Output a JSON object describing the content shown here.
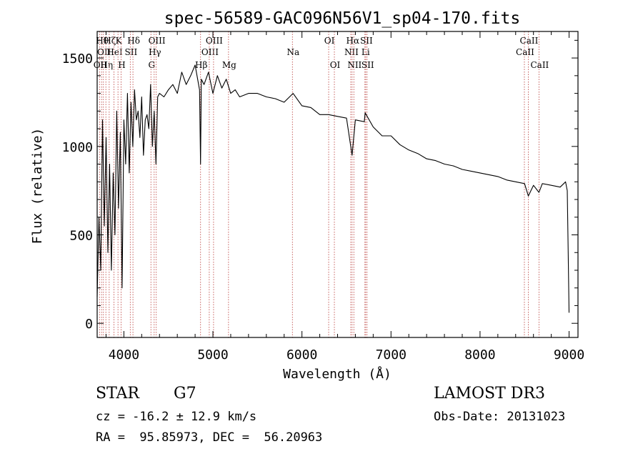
{
  "chart_data": {
    "type": "line",
    "title": "spec-56589-GAC096N56V1_sp04-170.fits",
    "xlabel": "Wavelength (Å)",
    "ylabel": "Flux (relative)",
    "xlim": [
      3700,
      9100
    ],
    "ylim": [
      -80,
      1650
    ],
    "xticks": [
      4000,
      5000,
      6000,
      7000,
      8000,
      9000
    ],
    "xtick_labels": [
      "4000",
      "5000",
      "6000",
      "7000",
      "8000",
      "9000"
    ],
    "yticks": [
      0,
      500,
      1000,
      1500
    ],
    "ytick_labels": [
      "0",
      "500",
      "1000",
      "1500"
    ],
    "grid": false,
    "series": [
      {
        "name": "spectrum",
        "x": [
          3700,
          3720,
          3740,
          3760,
          3780,
          3800,
          3820,
          3840,
          3860,
          3880,
          3900,
          3920,
          3940,
          3960,
          3980,
          4000,
          4020,
          4040,
          4060,
          4080,
          4100,
          4120,
          4140,
          4160,
          4180,
          4200,
          4220,
          4240,
          4260,
          4280,
          4300,
          4320,
          4340,
          4360,
          4380,
          4400,
          4450,
          4500,
          4550,
          4600,
          4650,
          4700,
          4750,
          4800,
          4850,
          4861,
          4870,
          4900,
          4950,
          5000,
          5050,
          5100,
          5150,
          5200,
          5250,
          5300,
          5400,
          5500,
          5600,
          5700,
          5800,
          5900,
          6000,
          6100,
          6200,
          6300,
          6400,
          6500,
          6563,
          6600,
          6700,
          6710,
          6800,
          6900,
          7000,
          7100,
          7200,
          7300,
          7400,
          7500,
          7600,
          7700,
          7800,
          7900,
          8000,
          8100,
          8200,
          8300,
          8400,
          8500,
          8542,
          8600,
          8662,
          8700,
          8800,
          8900,
          8960,
          8980,
          8990,
          9000
        ],
        "values": [
          150,
          600,
          300,
          1150,
          550,
          1050,
          400,
          900,
          300,
          850,
          500,
          1200,
          650,
          1080,
          200,
          1150,
          900,
          1300,
          850,
          1250,
          1000,
          1320,
          1150,
          1200,
          1050,
          1280,
          950,
          1150,
          1180,
          1100,
          1350,
          1000,
          1200,
          900,
          1280,
          1300,
          1280,
          1320,
          1350,
          1300,
          1420,
          1350,
          1400,
          1460,
          1320,
          900,
          1380,
          1350,
          1420,
          1300,
          1400,
          1330,
          1380,
          1300,
          1320,
          1280,
          1300,
          1300,
          1280,
          1270,
          1250,
          1300,
          1230,
          1220,
          1180,
          1180,
          1170,
          1160,
          950,
          1150,
          1140,
          1190,
          1110,
          1060,
          1060,
          1010,
          980,
          960,
          930,
          920,
          900,
          890,
          870,
          860,
          850,
          840,
          830,
          810,
          800,
          790,
          720,
          780,
          740,
          790,
          780,
          770,
          800,
          750,
          400,
          60
        ]
      }
    ],
    "lines": [
      {
        "x": 3727,
        "labels": [
          "OII"
        ],
        "rows": [
          3
        ]
      },
      {
        "x": 3750,
        "labels": [
          "Hθ"
        ],
        "rows": [
          1
        ]
      },
      {
        "x": 3770,
        "labels": [
          "OII"
        ],
        "rows": [
          2
        ]
      },
      {
        "x": 3798,
        "labels": [
          "Hη"
        ],
        "rows": [
          3
        ]
      },
      {
        "x": 3835,
        "labels": [
          "Hζ"
        ],
        "rows": [
          1
        ]
      },
      {
        "x": 3889,
        "labels": [
          "HeI"
        ],
        "rows": [
          2
        ]
      },
      {
        "x": 3934,
        "labels": [
          "K"
        ],
        "rows": [
          1
        ]
      },
      {
        "x": 3969,
        "labels": [
          "H"
        ],
        "rows": [
          3
        ]
      },
      {
        "x": 4072,
        "labels": [
          "SII"
        ],
        "rows": [
          2
        ]
      },
      {
        "x": 4102,
        "labels": [
          "Hδ"
        ],
        "rows": [
          1
        ]
      },
      {
        "x": 4304,
        "labels": [
          "G"
        ],
        "rows": [
          3
        ]
      },
      {
        "x": 4340,
        "labels": [
          "Hγ"
        ],
        "rows": [
          2
        ]
      },
      {
        "x": 4363,
        "labels": [
          "OIII"
        ],
        "rows": [
          1
        ]
      },
      {
        "x": 4861,
        "labels": [
          "Hβ"
        ],
        "rows": [
          3
        ]
      },
      {
        "x": 4959,
        "labels": [
          "OIII"
        ],
        "rows": [
          2
        ]
      },
      {
        "x": 5007,
        "labels": [
          "OIII"
        ],
        "rows": [
          1
        ]
      },
      {
        "x": 5175,
        "labels": [
          "Mg"
        ],
        "rows": [
          3
        ]
      },
      {
        "x": 5893,
        "labels": [
          "Na"
        ],
        "rows": [
          2
        ]
      },
      {
        "x": 6300,
        "labels": [
          "OI"
        ],
        "rows": [
          1
        ]
      },
      {
        "x": 6364,
        "labels": [
          "OI"
        ],
        "rows": [
          3
        ]
      },
      {
        "x": 6548,
        "labels": [
          "NII"
        ],
        "rows": [
          2
        ]
      },
      {
        "x": 6563,
        "labels": [
          "Hα"
        ],
        "rows": [
          1
        ]
      },
      {
        "x": 6583,
        "labels": [
          "NII"
        ],
        "rows": [
          3
        ]
      },
      {
        "x": 6707,
        "labels": [
          "Li"
        ],
        "rows": [
          2
        ]
      },
      {
        "x": 6716,
        "labels": [
          "SII"
        ],
        "rows": [
          1
        ]
      },
      {
        "x": 6731,
        "labels": [
          "SII"
        ],
        "rows": [
          3
        ]
      },
      {
        "x": 8498,
        "labels": [
          "CaII"
        ],
        "rows": [
          2
        ]
      },
      {
        "x": 8542,
        "labels": [
          "CaII"
        ],
        "rows": [
          1
        ]
      },
      {
        "x": 8662,
        "labels": [
          "CaII"
        ],
        "rows": [
          3
        ]
      }
    ]
  },
  "info": {
    "class": "STAR",
    "subclass": "G7",
    "redshift": "cz = -16.2 ± 12.9 km/s",
    "coords": "RA =  95.85973, DEC =  56.20963",
    "survey": "LAMOST DR3",
    "obs_date": "Obs-Date: 20131023"
  }
}
